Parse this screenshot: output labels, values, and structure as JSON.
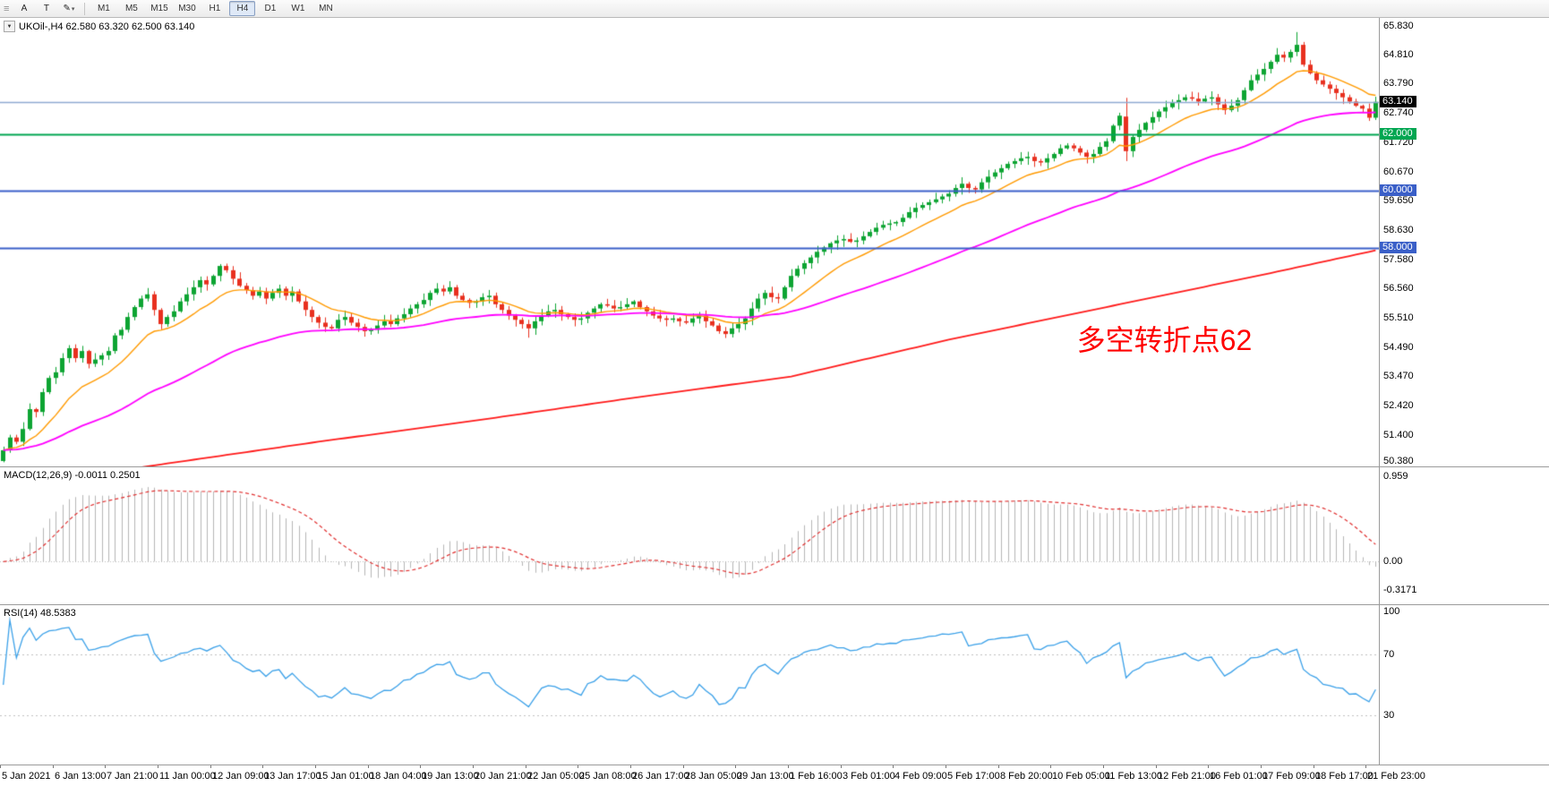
{
  "toolbar": {
    "grip_glyph": "≡",
    "tools": [
      {
        "name": "cursor",
        "glyph": "A"
      },
      {
        "name": "text",
        "glyph": "T"
      },
      {
        "name": "draw",
        "glyph": "✎"
      }
    ],
    "dropdown_glyph": "▾",
    "timeframes": [
      {
        "label": "M1",
        "active": false
      },
      {
        "label": "M5",
        "active": false
      },
      {
        "label": "M15",
        "active": false
      },
      {
        "label": "M30",
        "active": false
      },
      {
        "label": "H1",
        "active": false
      },
      {
        "label": "H4",
        "active": true
      },
      {
        "label": "D1",
        "active": false
      },
      {
        "label": "W1",
        "active": false
      },
      {
        "label": "MN",
        "active": false
      }
    ]
  },
  "chart": {
    "collapse_glyph": "▼",
    "header_text": "UKOil-,H4 62.580 63.320 62.500 63.140",
    "annotation": {
      "text": "多空转折点62",
      "bar": 164,
      "price": 54.6,
      "color": "#ff0000"
    },
    "price_axis": [
      "65.830",
      "64.810",
      "63.790",
      "62.740",
      "61.720",
      "60.670",
      "59.650",
      "58.630",
      "57.580",
      "56.560",
      "55.510",
      "54.490",
      "53.470",
      "52.420",
      "51.400",
      "50.380"
    ],
    "price_range": {
      "max": 66.1,
      "min": 50.28
    },
    "current_price": {
      "text": "63.140",
      "value": 63.14,
      "badge_bg": "#000000",
      "line_color": "#8faad2"
    },
    "hlines": [
      {
        "text": "62.000",
        "value": 62.0,
        "color": "#00a651"
      },
      {
        "text": "60.000",
        "value": 60.0,
        "color": "#3a5fc8"
      },
      {
        "text": "58.000",
        "value": 58.0,
        "color": "#3a5fc8"
      }
    ],
    "colors": {
      "bull": "#0da432",
      "bear": "#e8301f",
      "ma_fast": "#ff9a00",
      "ma_mid": "#ff00ff",
      "ma_slow": "#ff1a1a",
      "background": "#ffffff"
    }
  },
  "macd": {
    "label": "MACD(12,26,9)",
    "values": "-0.0011 0.2501",
    "axis": [
      "0.959",
      "0.00",
      "-0.3171"
    ],
    "plot_range": {
      "max": 1.0,
      "min": -0.42
    },
    "hist_color": "#b6b6b6",
    "signal_color": "#e03030",
    "zero_line_color": "#bdbdbd"
  },
  "rsi": {
    "label": "RSI(14)",
    "value": "48.5383",
    "axis": [
      "100",
      "70",
      "30"
    ],
    "levels": [
      70,
      30
    ],
    "color": "#3aa0e8",
    "level_color": "#c0c0c0"
  },
  "time_axis": {
    "bar_step": 8,
    "labels": [
      "5 Jan 2021",
      "6 Jan 13:00",
      "7 Jan 21:00",
      "11 Jan 00:00",
      "12 Jan 09:00",
      "13 Jan 17:00",
      "15 Jan 01:00",
      "18 Jan 04:00",
      "19 Jan 13:00",
      "20 Jan 21:00",
      "22 Jan 05:00",
      "25 Jan 08:00",
      "26 Jan 17:00",
      "28 Jan 05:00",
      "29 Jan 13:00",
      "1 Feb 16:00",
      "3 Feb 01:00",
      "4 Feb 09:00",
      "5 Feb 17:00",
      "8 Feb 20:00",
      "10 Feb 05:00",
      "11 Feb 13:00",
      "12 Feb 21:00",
      "16 Feb 01:00",
      "17 Feb 09:00",
      "18 Feb 17:00",
      "21 Feb 23:00"
    ]
  },
  "chart_data": {
    "type": "candlestick",
    "symbol": "UKOil-",
    "timeframe": "H4",
    "bars_total": 210,
    "ohlc_current": {
      "open": 62.58,
      "high": 63.32,
      "low": 62.5,
      "close": 63.14
    },
    "closes": [
      50.85,
      51.3,
      51.15,
      51.6,
      52.3,
      52.2,
      52.9,
      53.4,
      53.6,
      54.1,
      54.45,
      54.1,
      54.35,
      53.9,
      54.05,
      54.2,
      54.35,
      54.9,
      55.1,
      55.55,
      55.9,
      56.2,
      56.35,
      55.8,
      55.3,
      55.55,
      55.75,
      56.1,
      56.35,
      56.6,
      56.85,
      56.7,
      57.0,
      57.35,
      57.2,
      56.9,
      56.65,
      56.5,
      56.3,
      56.45,
      56.2,
      56.4,
      56.55,
      56.3,
      56.45,
      56.1,
      55.8,
      55.55,
      55.35,
      55.2,
      55.15,
      55.45,
      55.55,
      55.35,
      55.2,
      55.05,
      55.1,
      55.25,
      55.4,
      55.3,
      55.5,
      55.65,
      55.85,
      56.0,
      56.15,
      56.4,
      56.55,
      56.45,
      56.6,
      56.3,
      56.15,
      56.05,
      56.1,
      56.25,
      56.3,
      56.0,
      55.8,
      55.6,
      55.45,
      55.3,
      55.15,
      55.4,
      55.6,
      55.75,
      55.8,
      55.65,
      55.55,
      55.45,
      55.5,
      55.7,
      55.85,
      56.0,
      55.95,
      55.85,
      55.9,
      56.0,
      56.1,
      55.9,
      55.75,
      55.6,
      55.5,
      55.45,
      55.5,
      55.4,
      55.35,
      55.5,
      55.6,
      55.4,
      55.25,
      55.05,
      54.95,
      55.15,
      55.3,
      55.5,
      55.85,
      56.2,
      56.4,
      56.25,
      56.2,
      56.6,
      57.0,
      57.25,
      57.45,
      57.65,
      57.85,
      58.0,
      58.15,
      58.25,
      58.3,
      58.2,
      58.25,
      58.4,
      58.55,
      58.7,
      58.8,
      58.85,
      58.9,
      59.05,
      59.25,
      59.4,
      59.5,
      59.6,
      59.7,
      59.8,
      59.9,
      60.1,
      60.25,
      60.1,
      60.05,
      60.3,
      60.5,
      60.65,
      60.8,
      60.95,
      61.05,
      61.15,
      61.2,
      61.05,
      61.0,
      61.15,
      61.3,
      61.5,
      61.6,
      61.5,
      61.35,
      61.2,
      61.3,
      61.55,
      61.75,
      62.3,
      62.65,
      61.4,
      61.9,
      62.15,
      62.4,
      62.6,
      62.8,
      62.95,
      63.1,
      63.2,
      63.3,
      63.25,
      63.15,
      63.25,
      63.3,
      63.05,
      62.85,
      63.0,
      63.2,
      63.55,
      63.9,
      64.1,
      64.3,
      64.55,
      64.8,
      64.7,
      64.9,
      65.15,
      64.45,
      64.15,
      63.9,
      63.75,
      63.6,
      63.45,
      63.3,
      63.15,
      63.0,
      62.9,
      62.58,
      63.14
    ],
    "special_bars": [
      {
        "i": 171,
        "o": 62.62,
        "h": 63.28,
        "l": 61.05,
        "c": 61.4
      },
      {
        "i": 80,
        "o": 55.3,
        "h": 55.45,
        "l": 54.82,
        "c": 55.15
      },
      {
        "i": 197,
        "o": 64.9,
        "h": 65.6,
        "l": 64.75,
        "c": 65.15
      }
    ],
    "ma_fast_period": 13,
    "ma_mid_period": 50,
    "ma_slow_path": [
      [
        0,
        49.55
      ],
      [
        24,
        50.35
      ],
      [
        48,
        51.15
      ],
      [
        72,
        51.9
      ],
      [
        96,
        52.7
      ],
      [
        120,
        53.45
      ],
      [
        144,
        54.75
      ],
      [
        168,
        55.9
      ],
      [
        192,
        57.05
      ],
      [
        209,
        57.9
      ]
    ],
    "macd_params": {
      "fast": 12,
      "slow": 26,
      "signal": 9
    },
    "rsi_period": 14
  }
}
